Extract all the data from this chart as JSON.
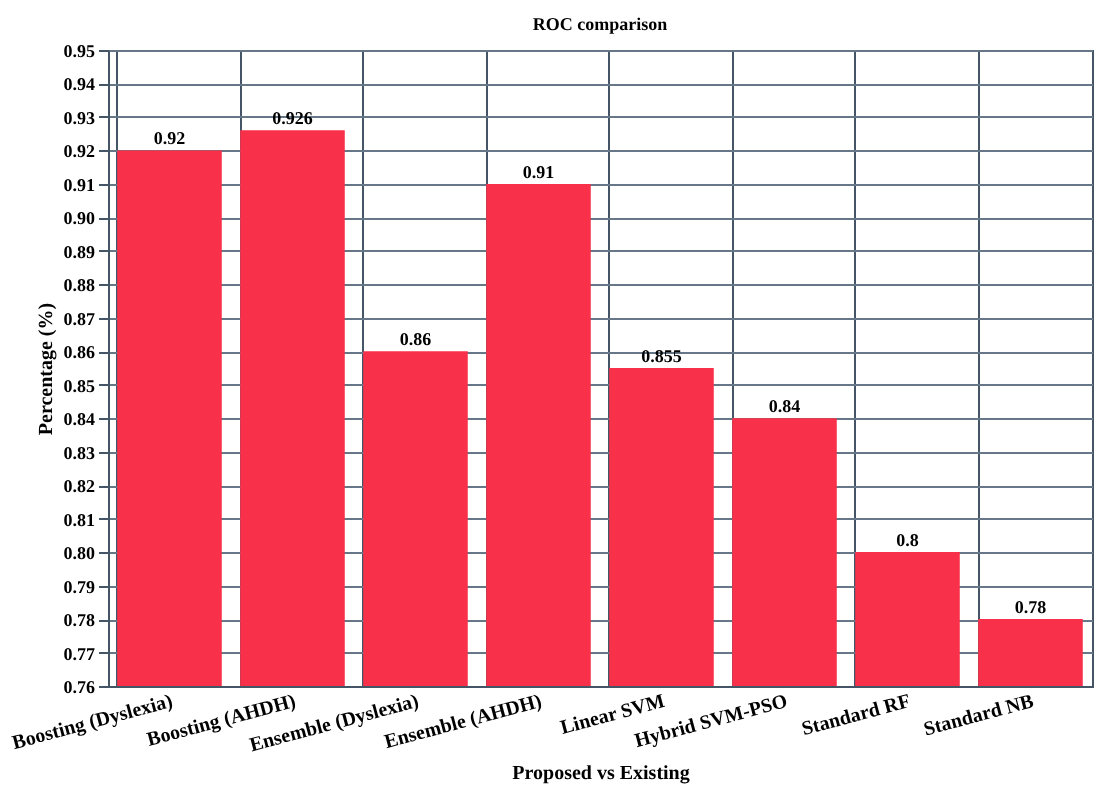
{
  "chart_data": {
    "type": "bar",
    "title": "ROC comparison",
    "xlabel": "Proposed vs Existing",
    "ylabel": "Percentage (%)",
    "categories": [
      "Boosting (Dyslexia)",
      "Boosting (AHDH)",
      "Ensemble (Dyslexia)",
      "Ensemble (AHDH)",
      "Linear SVM",
      "Hybrid SVM-PSO",
      "Standard RF",
      "Standard NB"
    ],
    "values": [
      0.92,
      0.926,
      0.86,
      0.91,
      0.855,
      0.84,
      0.8,
      0.78
    ],
    "color": "#f9304a",
    "ylim": [
      0.76,
      0.95
    ],
    "yticks": [
      0.76,
      0.77,
      0.78,
      0.79,
      {
        "value": 0.8,
        "label": "0.80"
      },
      0.81,
      0.82,
      0.83,
      0.84,
      0.85,
      0.86,
      0.87,
      0.88,
      0.89,
      {
        "value": 0.9,
        "label": "0.90"
      },
      0.91,
      0.92,
      0.93,
      0.94,
      0.95
    ],
    "data_labels": true,
    "grid": true
  }
}
